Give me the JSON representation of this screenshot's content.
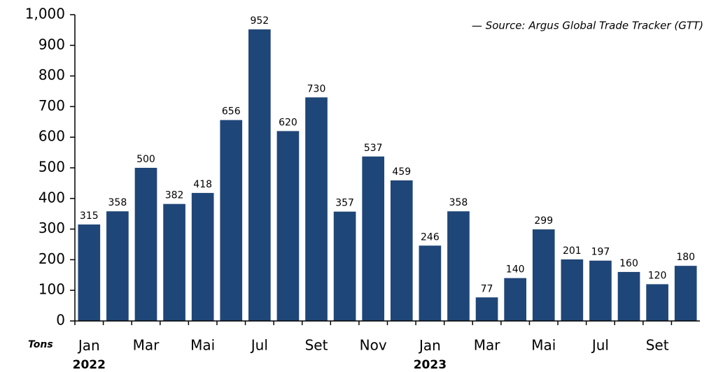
{
  "chart_data": {
    "type": "bar",
    "y_label": "Tons",
    "annotation": "— Source: Argus Global Trade Tracker (GTT)",
    "categories": [
      "Jan 2022",
      null,
      "Mar",
      null,
      "Mai",
      null,
      "Jul",
      null,
      "Set",
      null,
      "Nov",
      null,
      "Jan 2023",
      null,
      "Mar",
      null,
      "Mai",
      null,
      "Jul",
      null,
      "Set",
      null
    ],
    "values": [
      315,
      358,
      500,
      382,
      418,
      656,
      952,
      620,
      730,
      357,
      537,
      459,
      246,
      358,
      77,
      140,
      299,
      201,
      197,
      160,
      120,
      180
    ],
    "color": "#1f4678",
    "ylim": [
      0,
      1000
    ],
    "yticks": [
      0,
      100,
      200,
      300,
      400,
      500,
      600,
      700,
      800,
      900,
      {
        "value": 1000,
        "label": "1,000"
      }
    ],
    "grid": false
  }
}
